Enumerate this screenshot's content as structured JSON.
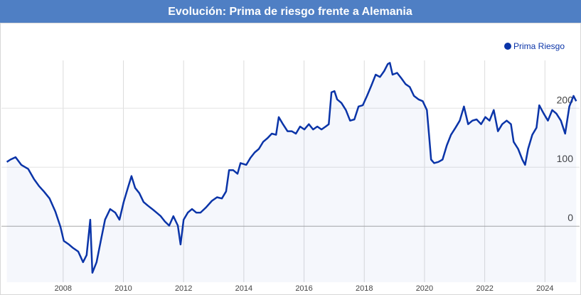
{
  "chart_data": {
    "type": "line",
    "title": "Evolución: Prima de riesgo frente a Alemania",
    "legend": "top-right",
    "grid": true,
    "xlim": [
      2005.95,
      2025.15
    ],
    "xticks": [
      2008,
      2010,
      2012,
      2014,
      2016,
      2018,
      2020,
      2022,
      2024
    ],
    "ylim": [
      -95,
      345
    ],
    "yticks": [
      0,
      100,
      200
    ],
    "x": [
      2006.13,
      2006.25,
      2006.42,
      2006.61,
      2006.84,
      2007.03,
      2007.2,
      2007.36,
      2007.55,
      2007.74,
      2007.91,
      2008.02,
      2008.19,
      2008.33,
      2008.5,
      2008.66,
      2008.78,
      2008.9,
      2008.97,
      2009.11,
      2009.25,
      2009.39,
      2009.56,
      2009.73,
      2009.87,
      2010.01,
      2010.15,
      2010.27,
      2010.39,
      2010.53,
      2010.67,
      2010.81,
      2010.96,
      2011.1,
      2011.24,
      2011.38,
      2011.52,
      2011.66,
      2011.81,
      2011.9,
      2012.0,
      2012.14,
      2012.28,
      2012.42,
      2012.56,
      2012.75,
      2012.94,
      2013.11,
      2013.27,
      2013.41,
      2013.51,
      2013.65,
      2013.79,
      2013.89,
      2014.08,
      2014.22,
      2014.36,
      2014.5,
      2014.64,
      2014.78,
      2014.93,
      2015.07,
      2015.16,
      2015.3,
      2015.45,
      2015.59,
      2015.73,
      2015.87,
      2016.01,
      2016.16,
      2016.3,
      2016.44,
      2016.58,
      2016.72,
      2016.82,
      2016.91,
      2017.01,
      2017.1,
      2017.24,
      2017.39,
      2017.53,
      2017.67,
      2017.81,
      2017.95,
      2018.09,
      2018.24,
      2018.38,
      2018.52,
      2018.66,
      2018.78,
      2018.85,
      2018.94,
      2019.09,
      2019.23,
      2019.37,
      2019.51,
      2019.65,
      2019.8,
      2019.94,
      2020.08,
      2020.15,
      2020.22,
      2020.32,
      2020.46,
      2020.6,
      2020.74,
      2020.88,
      2021.03,
      2021.17,
      2021.31,
      2021.45,
      2021.59,
      2021.73,
      2021.88,
      2022.02,
      2022.16,
      2022.3,
      2022.44,
      2022.58,
      2022.73,
      2022.87,
      2022.96,
      2023.11,
      2023.25,
      2023.34,
      2023.44,
      2023.58,
      2023.72,
      2023.81,
      2023.96,
      2024.1,
      2024.24,
      2024.38,
      2024.53,
      2024.67,
      2024.81,
      2024.95,
      2025.04
    ],
    "series": [
      {
        "name": "Prima Riesgo",
        "color": "#0a34a8",
        "values": [
          109,
          113,
          117,
          104,
          97,
          80,
          68,
          59,
          47,
          25,
          -1,
          -25,
          -31,
          -37,
          -43,
          -61,
          -49,
          11,
          -79,
          -61,
          -25,
          11,
          29,
          23,
          11,
          41,
          65,
          85,
          65,
          56,
          41,
          35,
          29,
          23,
          17,
          8,
          1,
          17,
          1,
          -31,
          11,
          23,
          29,
          23,
          23,
          32,
          43,
          49,
          47,
          59,
          95,
          95,
          89,
          107,
          104,
          116,
          125,
          131,
          143,
          149,
          157,
          155,
          185,
          173,
          161,
          161,
          157,
          169,
          164,
          173,
          164,
          169,
          164,
          169,
          173,
          227,
          229,
          215,
          209,
          197,
          179,
          181,
          203,
          205,
          221,
          239,
          257,
          253,
          263,
          275,
          277,
          257,
          260,
          251,
          241,
          236,
          221,
          215,
          212,
          197,
          155,
          113,
          107,
          109,
          113,
          137,
          155,
          167,
          179,
          203,
          173,
          179,
          181,
          173,
          185,
          179,
          197,
          161,
          173,
          179,
          173,
          143,
          131,
          113,
          104,
          131,
          155,
          167,
          205,
          191,
          179,
          197,
          191,
          179,
          157,
          203,
          221,
          212
        ]
      }
    ]
  }
}
